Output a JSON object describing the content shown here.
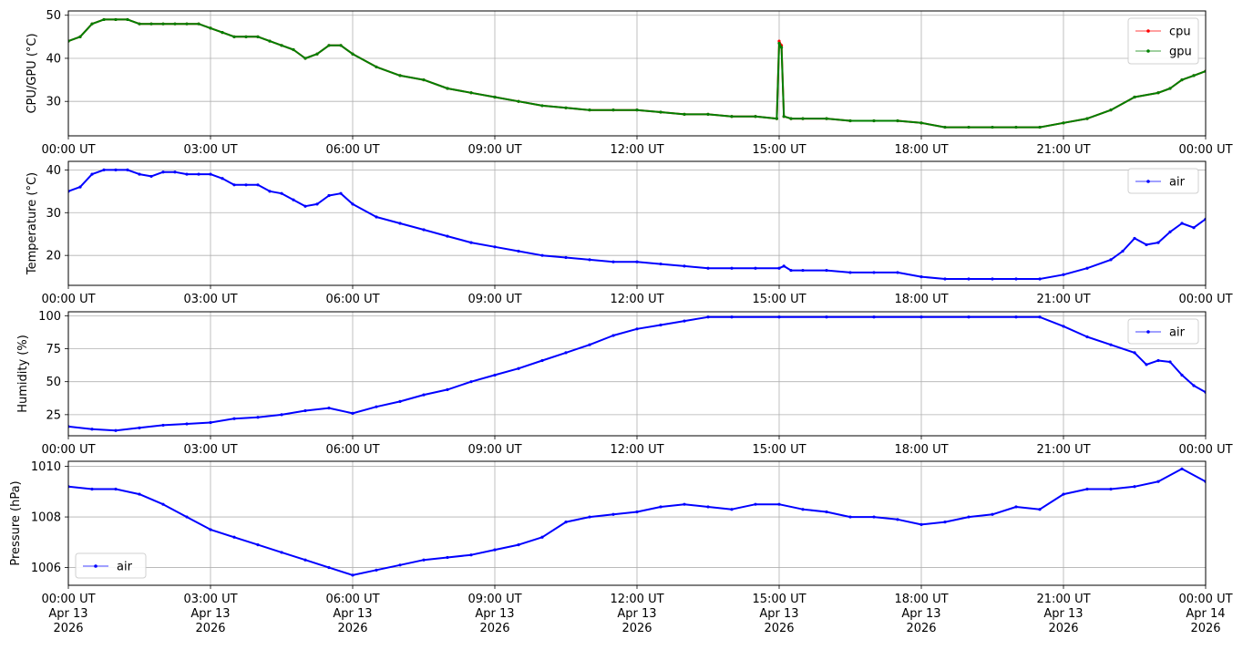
{
  "x_ticks": [
    "00:00 UT",
    "03:00 UT",
    "06:00 UT",
    "09:00 UT",
    "12:00 UT",
    "15:00 UT",
    "18:00 UT",
    "21:00 UT",
    "00:00 UT"
  ],
  "x_date_ticks": [
    [
      "00:00 UT",
      "Apr 13",
      "2026"
    ],
    [
      "03:00 UT",
      "Apr 13",
      "2026"
    ],
    [
      "06:00 UT",
      "Apr 13",
      "2026"
    ],
    [
      "09:00 UT",
      "Apr 13",
      "2026"
    ],
    [
      "12:00 UT",
      "Apr 13",
      "2026"
    ],
    [
      "15:00 UT",
      "Apr 13",
      "2026"
    ],
    [
      "18:00 UT",
      "Apr 13",
      "2026"
    ],
    [
      "21:00 UT",
      "Apr 13",
      "2026"
    ],
    [
      "00:00 UT",
      "Apr 14",
      "2026"
    ]
  ],
  "chart_data": [
    {
      "type": "line",
      "ylabel": "CPU/GPU (°C)",
      "ylim": [
        22,
        51
      ],
      "yticks": [
        30,
        40,
        50
      ],
      "xlim": [
        "2026-04-13 00:00 UT",
        "2026-04-14 00:00 UT"
      ],
      "grid": true,
      "legend": "upper right",
      "x_hours": [
        0,
        0.25,
        0.5,
        0.75,
        1.0,
        1.25,
        1.5,
        1.75,
        2.0,
        2.25,
        2.5,
        2.75,
        3.0,
        3.25,
        3.5,
        3.75,
        4.0,
        4.25,
        4.5,
        4.75,
        5.0,
        5.25,
        5.5,
        5.75,
        6.0,
        6.5,
        7.0,
        7.5,
        8.0,
        8.5,
        9.0,
        9.5,
        10.0,
        10.5,
        11.0,
        11.5,
        12.0,
        12.5,
        13.0,
        13.5,
        14.0,
        14.5,
        14.95,
        15.0,
        15.05,
        15.1,
        15.25,
        15.5,
        16.0,
        16.5,
        17.0,
        17.5,
        18.0,
        18.5,
        19.0,
        19.5,
        20.0,
        20.5,
        21.0,
        21.5,
        22.0,
        22.5,
        23.0,
        23.25,
        23.5,
        23.75,
        24.0
      ],
      "series": [
        {
          "name": "cpu",
          "color": "#ff0000",
          "values": [
            44,
            45,
            48,
            49,
            49,
            49,
            48,
            48,
            48,
            48,
            48,
            48,
            47,
            46,
            45,
            45,
            45,
            44,
            43,
            42,
            40,
            41,
            43,
            43,
            41,
            38,
            36,
            35,
            33,
            32,
            31,
            30,
            29,
            28.5,
            28,
            28,
            28,
            27.5,
            27,
            27,
            26.5,
            26.5,
            26,
            44,
            43,
            26.5,
            26,
            26,
            26,
            25.5,
            25.5,
            25.5,
            25,
            24,
            24,
            24,
            24,
            24,
            25,
            26,
            28,
            31,
            32,
            33,
            35,
            36,
            37
          ]
        },
        {
          "name": "gpu",
          "color": "#008000",
          "values": [
            44,
            45,
            48,
            49,
            49,
            49,
            48,
            48,
            48,
            48,
            48,
            48,
            47,
            46,
            45,
            45,
            45,
            44,
            43,
            42,
            40,
            41,
            43,
            43,
            41,
            38,
            36,
            35,
            33,
            32,
            31,
            30,
            29,
            28.5,
            28,
            28,
            28,
            27.5,
            27,
            27,
            26.5,
            26.5,
            26,
            43.5,
            42.5,
            26.5,
            26,
            26,
            26,
            25.5,
            25.5,
            25.5,
            25,
            24,
            24,
            24,
            24,
            24,
            25,
            26,
            28,
            31,
            32,
            33,
            35,
            36,
            37
          ]
        }
      ]
    },
    {
      "type": "line",
      "ylabel": "Temperature (°C)",
      "ylim": [
        13,
        42
      ],
      "yticks": [
        20,
        30,
        40
      ],
      "xlim": [
        "2026-04-13 00:00 UT",
        "2026-04-14 00:00 UT"
      ],
      "grid": true,
      "legend": "upper right",
      "x_hours": [
        0,
        0.25,
        0.5,
        0.75,
        1.0,
        1.25,
        1.5,
        1.75,
        2.0,
        2.25,
        2.5,
        2.75,
        3.0,
        3.25,
        3.5,
        3.75,
        4.0,
        4.25,
        4.5,
        4.75,
        5.0,
        5.25,
        5.5,
        5.75,
        6.0,
        6.5,
        7.0,
        7.5,
        8.0,
        8.5,
        9.0,
        9.5,
        10.0,
        10.5,
        11.0,
        11.5,
        12.0,
        12.5,
        13.0,
        13.5,
        14.0,
        14.5,
        15.0,
        15.1,
        15.25,
        15.5,
        16.0,
        16.5,
        17.0,
        17.5,
        18.0,
        18.5,
        19.0,
        19.5,
        20.0,
        20.5,
        21.0,
        21.5,
        22.0,
        22.25,
        22.5,
        22.75,
        23.0,
        23.25,
        23.5,
        23.75,
        24.0
      ],
      "series": [
        {
          "name": "air",
          "color": "#0000ff",
          "values": [
            35,
            36,
            39,
            40,
            40,
            40,
            39,
            38.5,
            39.5,
            39.5,
            39,
            39,
            39,
            38,
            36.5,
            36.5,
            36.5,
            35,
            34.5,
            33,
            31.5,
            32,
            34,
            34.5,
            32,
            29,
            27.5,
            26,
            24.5,
            23,
            22,
            21,
            20,
            19.5,
            19,
            18.5,
            18.5,
            18,
            17.5,
            17,
            17,
            17,
            17,
            17.5,
            16.5,
            16.5,
            16.5,
            16,
            16,
            16,
            15,
            14.5,
            14.5,
            14.5,
            14.5,
            14.5,
            15.5,
            17,
            19,
            21,
            24,
            22.5,
            23,
            25.5,
            27.5,
            26.5,
            28.5
          ]
        }
      ]
    },
    {
      "type": "line",
      "ylabel": "Humidity (%)",
      "ylim": [
        9,
        103
      ],
      "yticks": [
        25,
        50,
        75,
        100
      ],
      "xlim": [
        "2026-04-13 00:00 UT",
        "2026-04-14 00:00 UT"
      ],
      "grid": true,
      "legend": "upper right",
      "x_hours": [
        0,
        0.5,
        1.0,
        1.5,
        2.0,
        2.5,
        3.0,
        3.5,
        4.0,
        4.5,
        5.0,
        5.5,
        6.0,
        6.5,
        7.0,
        7.5,
        8.0,
        8.5,
        9.0,
        9.5,
        10.0,
        10.5,
        11.0,
        11.5,
        12.0,
        12.5,
        13.0,
        13.5,
        14.0,
        15.0,
        16.0,
        17.0,
        18.0,
        19.0,
        20.0,
        20.5,
        21.0,
        21.5,
        22.0,
        22.5,
        22.75,
        23.0,
        23.25,
        23.5,
        23.75,
        24.0
      ],
      "series": [
        {
          "name": "air",
          "color": "#0000ff",
          "values": [
            16,
            14,
            13,
            15,
            17,
            18,
            19,
            22,
            23,
            25,
            28,
            30,
            26,
            31,
            35,
            40,
            44,
            50,
            55,
            60,
            66,
            72,
            78,
            85,
            90,
            93,
            96,
            99,
            99,
            99,
            99,
            99,
            99,
            99,
            99,
            99,
            92,
            84,
            78,
            72,
            63,
            66,
            65,
            55,
            47,
            42
          ]
        }
      ]
    },
    {
      "type": "line",
      "ylabel": "Pressure (hPa)",
      "ylim": [
        1005.3,
        1010.2
      ],
      "yticks": [
        1006,
        1008,
        1010
      ],
      "xlim": [
        "2026-04-13 00:00 UT",
        "2026-04-14 00:00 UT"
      ],
      "grid": true,
      "legend": "lower left",
      "x_hours": [
        0,
        0.5,
        1.0,
        1.5,
        2.0,
        2.5,
        3.0,
        3.5,
        4.0,
        4.5,
        5.0,
        5.5,
        6.0,
        6.5,
        7.0,
        7.5,
        8.0,
        8.5,
        9.0,
        9.5,
        10.0,
        10.5,
        11.0,
        11.5,
        12.0,
        12.5,
        13.0,
        13.5,
        14.0,
        14.5,
        15.0,
        15.5,
        16.0,
        16.5,
        17.0,
        17.5,
        18.0,
        18.5,
        19.0,
        19.5,
        20.0,
        20.5,
        21.0,
        21.5,
        22.0,
        22.5,
        23.0,
        23.5,
        24.0
      ],
      "series": [
        {
          "name": "air",
          "color": "#0000ff",
          "values": [
            1009.2,
            1009.1,
            1009.1,
            1008.9,
            1008.5,
            1008.0,
            1007.5,
            1007.2,
            1006.9,
            1006.6,
            1006.3,
            1006.0,
            1005.7,
            1005.9,
            1006.1,
            1006.3,
            1006.4,
            1006.5,
            1006.7,
            1006.9,
            1007.2,
            1007.8,
            1008.0,
            1008.1,
            1008.2,
            1008.4,
            1008.5,
            1008.4,
            1008.3,
            1008.5,
            1008.5,
            1008.3,
            1008.2,
            1008.0,
            1008.0,
            1007.9,
            1007.7,
            1007.8,
            1008.0,
            1008.1,
            1008.4,
            1008.3,
            1008.9,
            1009.1,
            1009.1,
            1009.2,
            1009.4,
            1009.9,
            1009.4
          ]
        }
      ]
    }
  ]
}
